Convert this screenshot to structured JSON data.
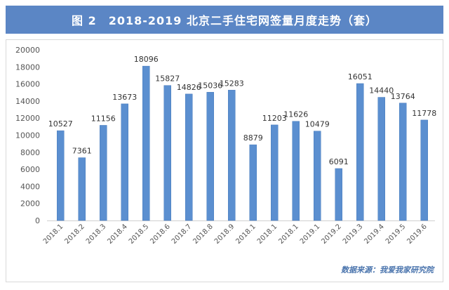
{
  "title": "图 2　2018-2019 北京二手住宅网签量月度走势（套）",
  "source_text": "数据来源：我爱我家研究院",
  "colors": {
    "title_bg": "#5b86c5",
    "bar": "#5b8fd0",
    "bar_edge": "#4a7cbd",
    "axis_text": "#555555",
    "source_text": "#4a74ad"
  },
  "chart_data": {
    "type": "bar",
    "title": "图 2　2018-2019 北京二手住宅网签量月度走势（套）",
    "xlabel": "",
    "ylabel": "",
    "ylim": [
      0,
      20000
    ],
    "yticks": [
      "0",
      "2000",
      "4000",
      "6000",
      "8000",
      "10000",
      "12000",
      "14000",
      "16000",
      "18000",
      "20000"
    ],
    "grid": false,
    "legend": "none",
    "categories": [
      "2018.1",
      "2018.2",
      "2018.3",
      "2018.4",
      "2018.5",
      "2018.6",
      "2018.7",
      "2018.8",
      "2018.9",
      "2018.1",
      "2018.1",
      "2018.1",
      "2019.1",
      "2019.2",
      "2019.3",
      "2019.4",
      "2019.5",
      "2019.6"
    ],
    "values": [
      10527,
      7361,
      11156,
      13673,
      18096,
      15827,
      14826,
      15036,
      15283,
      8879,
      11203,
      11626,
      10479,
      6091,
      16051,
      14440,
      13764,
      11778
    ]
  }
}
